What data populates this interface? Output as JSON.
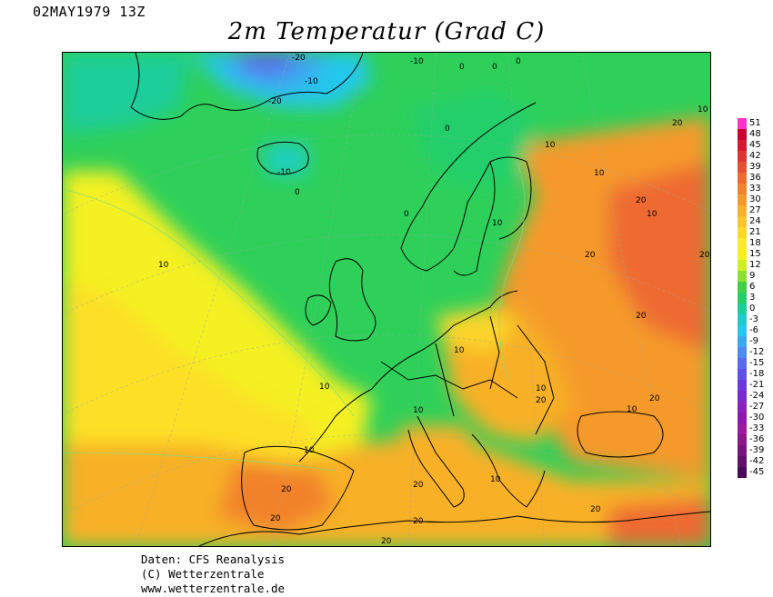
{
  "header": {
    "datetime": "02MAY1979 13Z",
    "title": "2m Temperatur (Grad C)"
  },
  "credits": {
    "line1": "Daten: CFS Reanalysis",
    "line2": "(C) Wetterzentrale",
    "line3": "www.wetterzentrale.de"
  },
  "colorbar": {
    "unit": "Grad C",
    "ticks": [
      "51",
      "48",
      "45",
      "42",
      "39",
      "36",
      "33",
      "30",
      "27",
      "24",
      "21",
      "18",
      "15",
      "12",
      "9",
      "6",
      "3",
      "0",
      "-3",
      "-6",
      "-9",
      "-12",
      "-15",
      "-18",
      "-21",
      "-24",
      "-27",
      "-30",
      "-33",
      "-36",
      "-39",
      "-42",
      "-45"
    ],
    "colors": [
      "#ff33cc",
      "#cc0033",
      "#d61a33",
      "#e03333",
      "#e85033",
      "#ee6a30",
      "#f2822c",
      "#f59a2a",
      "#f8b028",
      "#fbc62a",
      "#fdd82a",
      "#ffe830",
      "#f4f020",
      "#ccee22",
      "#8fe030",
      "#3fd046",
      "#22cf6a",
      "#1cce9a",
      "#1cccc8",
      "#22c8ee",
      "#3aa8f0",
      "#4f8af0",
      "#5a6aee",
      "#6050e8",
      "#6a38e0",
      "#7a28d0",
      "#8a20c0",
      "#9018b0",
      "#9a1aa0",
      "#8a1888",
      "#78147a",
      "#60106a",
      "#4a0a5a"
    ]
  },
  "map": {
    "type": "temperature-field",
    "region": "Europe",
    "isotherm_labels": [
      "-20",
      "-10",
      "0",
      "10",
      "20"
    ]
  }
}
